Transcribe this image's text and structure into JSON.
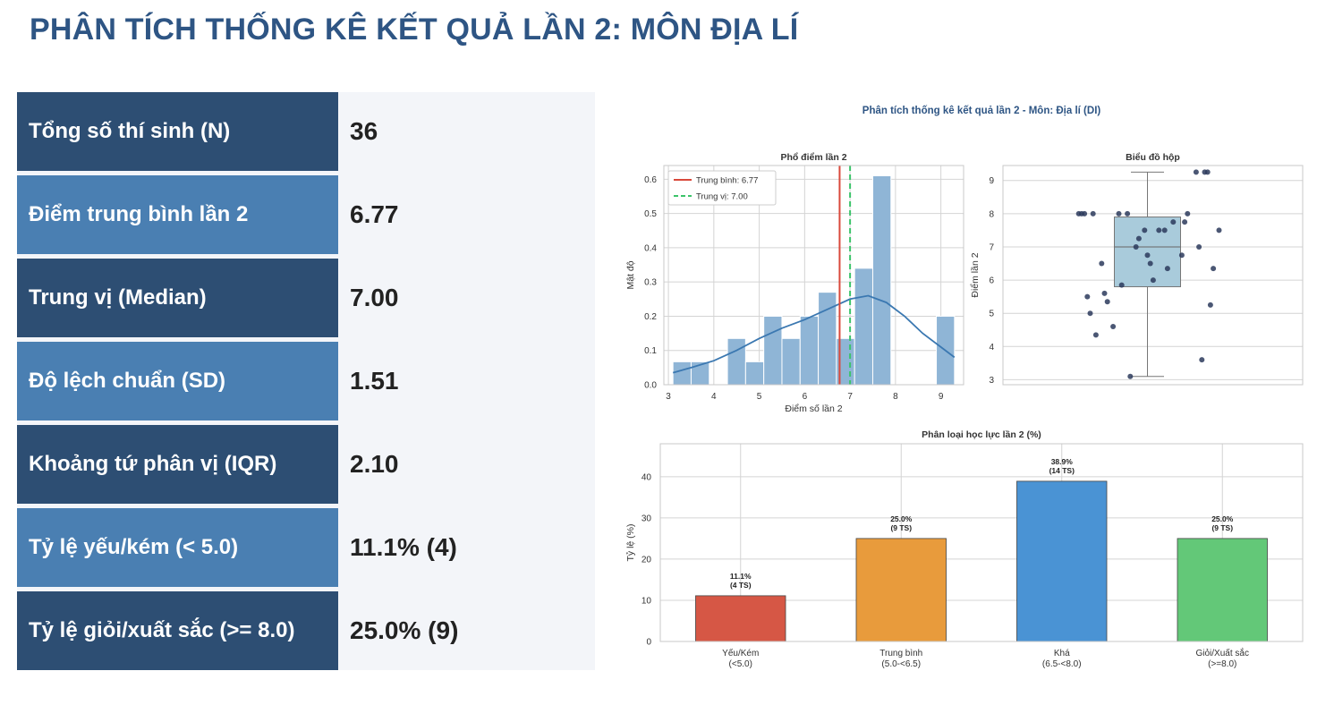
{
  "page": {
    "title": "PHÂN TÍCH THỐNG KÊ KẾT QUẢ LẦN 2: MÔN ĐỊA LÍ"
  },
  "stats": [
    {
      "label": "Tổng số thí sinh (N)",
      "value": "36",
      "tone": "dark"
    },
    {
      "label": "Điểm trung bình lần 2",
      "value": "6.77",
      "tone": "mid"
    },
    {
      "label": "Trung vị (Median)",
      "value": "7.00",
      "tone": "dark"
    },
    {
      "label": "Độ lệch chuẩn (SD)",
      "value": "1.51",
      "tone": "mid"
    },
    {
      "label": "Khoảng tứ phân vị (IQR)",
      "value": "2.10",
      "tone": "dark"
    },
    {
      "label": "Tỷ lệ yếu/kém (< 5.0)",
      "value": "11.1% (4)",
      "tone": "mid"
    },
    {
      "label": "Tỷ lệ giỏi/xuất sắc (>= 8.0)",
      "value": "25.0% (9)",
      "tone": "dark"
    }
  ],
  "colors": {
    "title": "#2e5584",
    "label_dark": "#2d4e73",
    "label_mid": "#4a7fb2",
    "hist_bar": "#8fb5d6",
    "kde": "#3b78b1",
    "mean_line": "#d9493b",
    "median_line": "#3cc46a",
    "box_fill": "#a9cbdb",
    "point": "#2b3a5c"
  },
  "chart_data": [
    {
      "type": "figure",
      "title": "Phân tích thống kê kết quả lần 2 - Môn: Địa lí (DI)"
    },
    {
      "type": "histogram",
      "title": "Phổ điểm lần 2",
      "xlabel": "Điểm số lần 2",
      "ylabel": "Mật độ",
      "xlim": [
        2.9,
        9.5
      ],
      "ylim": [
        0,
        0.64
      ],
      "xticks": [
        3,
        4,
        5,
        6,
        7,
        8,
        9
      ],
      "yticks": [
        0.0,
        0.1,
        0.2,
        0.3,
        0.4,
        0.5,
        0.6
      ],
      "bin_width": 0.4,
      "bars": [
        {
          "x0": 3.1,
          "height": 0.067
        },
        {
          "x0": 3.5,
          "height": 0.067
        },
        {
          "x0": 4.3,
          "height": 0.135
        },
        {
          "x0": 4.7,
          "height": 0.067
        },
        {
          "x0": 5.1,
          "height": 0.2
        },
        {
          "x0": 5.5,
          "height": 0.135
        },
        {
          "x0": 5.9,
          "height": 0.2
        },
        {
          "x0": 6.3,
          "height": 0.27
        },
        {
          "x0": 6.7,
          "height": 0.135
        },
        {
          "x0": 7.1,
          "height": 0.34
        },
        {
          "x0": 7.5,
          "height": 0.61
        },
        {
          "x0": 8.9,
          "height": 0.2
        }
      ],
      "kde": {
        "x": [
          3.1,
          3.5,
          4.0,
          4.5,
          5.0,
          5.5,
          6.0,
          6.5,
          7.0,
          7.4,
          7.8,
          8.2,
          8.6,
          9.0,
          9.3
        ],
        "y": [
          0.035,
          0.05,
          0.07,
          0.1,
          0.135,
          0.165,
          0.19,
          0.22,
          0.25,
          0.26,
          0.24,
          0.2,
          0.15,
          0.11,
          0.08
        ]
      },
      "mean": 6.77,
      "median": 7.0,
      "legend": {
        "placement": "upper-left",
        "entries": [
          "Trung bình: 6.77",
          "Trung vị: 7.00"
        ]
      }
    },
    {
      "type": "box",
      "title": "Biểu đồ hộp",
      "ylabel": "Điểm lần 2",
      "ylim": [
        2.85,
        9.45
      ],
      "yticks": [
        3,
        4,
        5,
        6,
        7,
        8,
        9
      ],
      "min": 3.1,
      "q1": 5.8,
      "median": 7.0,
      "q3": 7.9,
      "max": 9.25,
      "points": [
        {
          "jitter": 0.02,
          "y": 8.0
        },
        {
          "jitter": 0.06,
          "y": 8.0
        },
        {
          "jitter": 0.04,
          "y": 8.0
        },
        {
          "jitter": 0.12,
          "y": 8.0
        },
        {
          "jitter": 0.36,
          "y": 8.0
        },
        {
          "jitter": 0.3,
          "y": 8.0
        },
        {
          "jitter": 0.84,
          "y": 9.25
        },
        {
          "jitter": 0.9,
          "y": 9.25
        },
        {
          "jitter": 0.92,
          "y": 9.25
        },
        {
          "jitter": 1.0,
          "y": 7.5
        },
        {
          "jitter": 0.58,
          "y": 7.5
        },
        {
          "jitter": 0.62,
          "y": 7.5
        },
        {
          "jitter": 0.48,
          "y": 7.5
        },
        {
          "jitter": 0.68,
          "y": 7.75
        },
        {
          "jitter": 0.76,
          "y": 7.75
        },
        {
          "jitter": 0.78,
          "y": 8.0
        },
        {
          "jitter": 0.44,
          "y": 7.25
        },
        {
          "jitter": 0.42,
          "y": 7.0
        },
        {
          "jitter": 0.86,
          "y": 7.0
        },
        {
          "jitter": 0.5,
          "y": 6.75
        },
        {
          "jitter": 0.74,
          "y": 6.75
        },
        {
          "jitter": 0.52,
          "y": 6.5
        },
        {
          "jitter": 0.18,
          "y": 6.5
        },
        {
          "jitter": 0.64,
          "y": 6.35
        },
        {
          "jitter": 0.96,
          "y": 6.35
        },
        {
          "jitter": 0.54,
          "y": 6.0
        },
        {
          "jitter": 0.32,
          "y": 5.85
        },
        {
          "jitter": 0.2,
          "y": 5.6
        },
        {
          "jitter": 0.08,
          "y": 5.5
        },
        {
          "jitter": 0.22,
          "y": 5.35
        },
        {
          "jitter": 0.94,
          "y": 5.25
        },
        {
          "jitter": 0.1,
          "y": 5.0
        },
        {
          "jitter": 0.26,
          "y": 4.6
        },
        {
          "jitter": 0.14,
          "y": 4.35
        },
        {
          "jitter": 0.88,
          "y": 3.6
        },
        {
          "jitter": 0.38,
          "y": 3.1
        }
      ]
    },
    {
      "type": "bar",
      "title": "Phân loại học lực lần 2 (%)",
      "ylabel": "Tỷ lệ (%)",
      "ylim": [
        0,
        48
      ],
      "yticks": [
        0,
        10,
        20,
        30,
        40
      ],
      "categories": [
        [
          "Yếu/Kém",
          "(<5.0)"
        ],
        [
          "Trung bình",
          "(5.0-<6.5)"
        ],
        [
          "Khá",
          "(6.5-<8.0)"
        ],
        [
          "Giỏi/Xuất sắc",
          "(>=8.0)"
        ]
      ],
      "values": [
        11.1,
        25.0,
        38.9,
        25.0
      ],
      "labels": [
        [
          "11.1%",
          "(4 TS)"
        ],
        [
          "25.0%",
          "(9 TS)"
        ],
        [
          "38.9%",
          "(14 TS)"
        ],
        [
          "25.0%",
          "(9 TS)"
        ]
      ],
      "colors": [
        "#d65745",
        "#e89b3c",
        "#4a93d4",
        "#63c878"
      ]
    }
  ]
}
